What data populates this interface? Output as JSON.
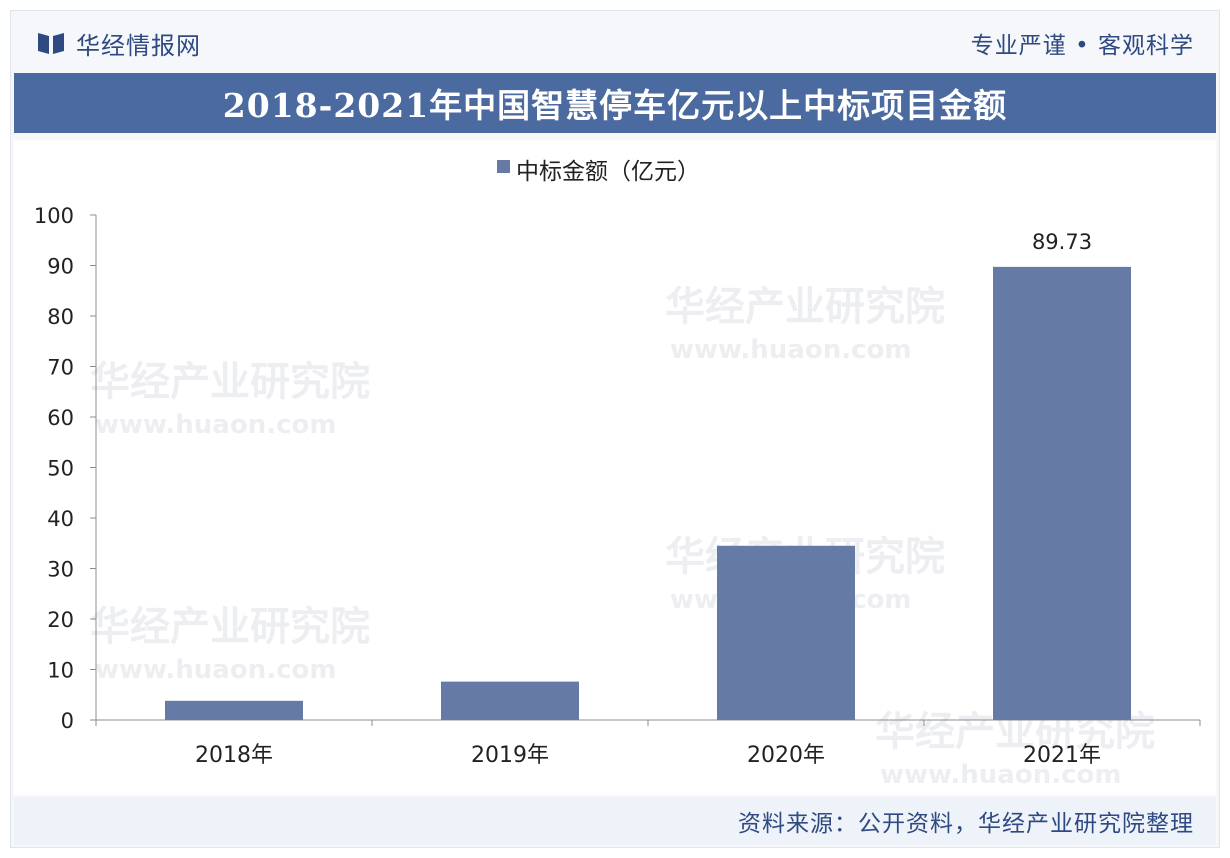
{
  "header": {
    "brand_name": "华经情报网",
    "slogan": "专业严谨 • 客观科学"
  },
  "watermark": {
    "line1": "华经产业研究院",
    "line2": "www.huaon.com"
  },
  "chart_data": {
    "type": "bar",
    "title": "2018-2021年中国智慧停车亿元以上中标项目金额",
    "categories": [
      "2018年",
      "2019年",
      "2020年",
      "2021年"
    ],
    "series": [
      {
        "name": "中标金额（亿元）",
        "values": [
          3.8,
          7.6,
          34.5,
          89.73
        ],
        "color": "#657ba5"
      }
    ],
    "data_labels": [
      "",
      "",
      "",
      "89.73"
    ],
    "ylim": [
      0,
      100
    ],
    "yticks": [
      0,
      10,
      20,
      30,
      40,
      50,
      60,
      70,
      80,
      90,
      100
    ],
    "xlabel": "",
    "ylabel": "",
    "legend_position": "top-center",
    "grid": false
  },
  "footer": {
    "source": "资料来源：公开资料，华经产业研究院整理"
  }
}
